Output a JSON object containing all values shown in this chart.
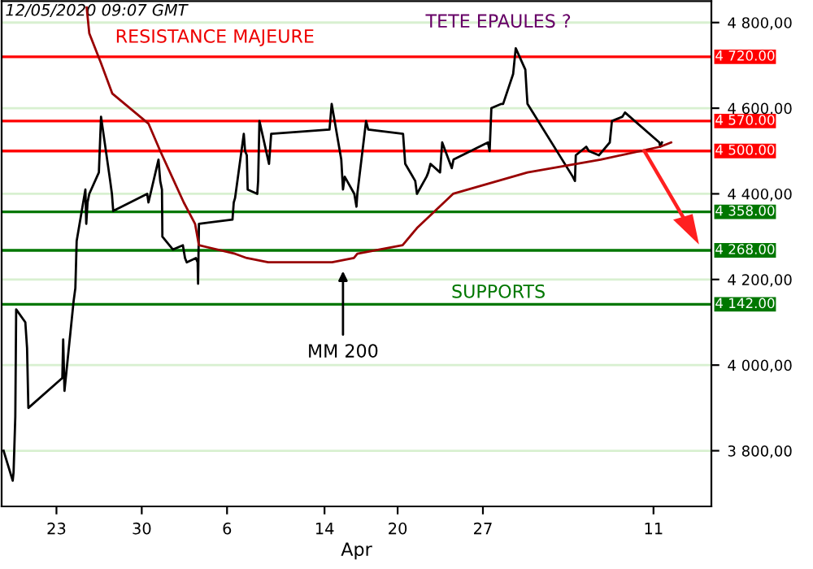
{
  "chart_data": {
    "type": "line",
    "xlabel": "Apr",
    "annotations": [
      "12/05/2020 09:07 GMT",
      "RESISTANCE MAJEURE",
      "TETE EPAULES ?",
      "SUPPORTS",
      {
        "text": "MM 200",
        "x": "2020-04-15T12:24",
        "y": 4230
      }
    ],
    "series": [
      {
        "color": "#000000",
        "x": [
          "2020-03-18T15:48",
          "2020-03-19T09:51",
          "2020-03-19T11:33",
          "2020-03-19T14:57",
          "2020-03-19T16:39",
          "2020-03-20T10:42",
          "2020-03-20T14:06",
          "2020-03-20T16:39",
          "2020-03-23T11:33",
          "2020-03-23T13:15",
          "2020-03-23T15:48",
          "2020-03-24T09:51",
          "2020-03-24T13:15",
          "2020-03-24T15:48",
          "2020-03-25T09:00",
          "2020-03-25T10:42",
          "2020-03-25T13:15",
          "2020-03-25T16:39",
          "2020-03-26T11:33",
          "2020-03-26T15:48",
          "2020-03-27T09:51",
          "2020-03-27T13:15",
          "2020-03-27T15:48",
          "2020-03-30T10:42",
          "2020-03-30T13:15",
          "2020-03-31T09:00",
          "2020-03-31T12:24",
          "2020-03-31T15:48",
          "2020-03-31T16:39",
          "2020-04-01T13:15",
          "2020-04-02T09:00",
          "2020-04-02T13:15",
          "2020-04-02T16:39",
          "2020-04-03T10:42",
          "2020-04-03T14:06",
          "2020-04-03T14:57",
          "2020-04-03T16:39",
          "2020-04-06T10:42",
          "2020-04-06T13:15",
          "2020-04-06T15:48",
          "2020-04-07T09:00",
          "2020-04-07T11:33",
          "2020-04-07T14:57",
          "2020-04-07T16:39",
          "2020-04-08T11:33",
          "2020-04-08T13:15",
          "2020-04-08T15:48",
          "2020-04-09T10:42",
          "2020-04-09T14:57",
          "2020-04-14T09:51",
          "2020-04-14T14:06",
          "2020-04-15T09:00",
          "2020-04-15T12:24",
          "2020-04-15T15:48",
          "2020-04-16T10:42",
          "2020-04-16T14:57",
          "2020-04-16T16:39",
          "2020-04-17T09:51",
          "2020-04-17T14:06",
          "2020-04-20T10:42",
          "2020-04-20T14:57",
          "2020-04-21T10:42",
          "2020-04-21T14:06",
          "2020-04-22T09:00",
          "2020-04-22T12:24",
          "2020-04-22T16:39",
          "2020-04-23T11:33",
          "2020-04-23T15:48",
          "2020-04-24T10:42",
          "2020-04-24T14:06",
          "2020-04-27T09:51",
          "2020-04-27T13:15",
          "2020-04-27T16:39",
          "2020-04-28T12:24",
          "2020-04-28T15:48",
          "2020-04-29T11:33",
          "2020-04-29T16:39",
          "2020-04-30T11:33",
          "2020-04-30T14:06",
          "2020-04-30T15:48",
          "2020-05-04T09:00",
          "2020-05-04T13:15",
          "2020-05-04T14:57",
          "2020-05-05T11:33",
          "2020-05-05T16:39",
          "2020-05-06T12:24",
          "2020-05-07T09:51",
          "2020-05-07T14:06",
          "2020-05-08T10:42",
          "2020-05-08T15:48",
          "2020-05-11T11:33",
          "2020-05-11T13:15",
          "2020-05-11T16:39"
        ],
        "values": [
          3800,
          3730,
          3750,
          3880,
          4130,
          4100,
          4040,
          3900,
          3970,
          4060,
          3940,
          4150,
          4180,
          4290,
          4410,
          4330,
          4380,
          4400,
          4450,
          4580,
          4430,
          4400,
          4360,
          4400,
          4380,
          4480,
          4430,
          4410,
          4300,
          4270,
          4280,
          4250,
          4240,
          4250,
          4240,
          4190,
          4330,
          4340,
          4380,
          4390,
          4540,
          4500,
          4490,
          4410,
          4400,
          4430,
          4570,
          4470,
          4540,
          4550,
          4610,
          4480,
          4410,
          4440,
          4400,
          4370,
          4400,
          4570,
          4550,
          4540,
          4470,
          4430,
          4400,
          4440,
          4450,
          4470,
          4450,
          4520,
          4460,
          4480,
          4520,
          4500,
          4600,
          4610,
          4610,
          4680,
          4740,
          4690,
          4640,
          4610,
          4440,
          4430,
          4490,
          4510,
          4500,
          4490,
          4520,
          4570,
          4580,
          4590,
          4520,
          4510,
          4520
        ]
      },
      {
        "color": "#990000",
        "x": [
          "2020-03-25T11:33",
          "2020-03-25T16:39",
          "2020-03-26T15:48",
          "2020-03-27T14:06",
          "2020-03-30T13:15",
          "2020-03-31T12:24",
          "2020-04-01T11:33",
          "2020-04-02T10:42",
          "2020-04-03T09:00",
          "2020-04-03T16:39",
          "2020-04-06T15:48",
          "2020-04-07T14:57",
          "2020-04-09T09:00",
          "2020-04-14T14:57",
          "2020-04-16T09:51",
          "2020-04-16T16:39",
          "2020-04-20T09:51",
          "2020-04-21T14:06",
          "2020-04-24T13:15",
          "2020-04-30T15:48",
          "2020-05-06T15:48",
          "2020-05-11T13:15",
          "2020-05-12T10:42"
        ],
        "values": [
          4835,
          4775,
          4705,
          4634,
          4564,
          4500,
          4440,
          4380,
          4330,
          4280,
          4260,
          4250,
          4240,
          4240,
          4250,
          4260,
          4280,
          4320,
          4400,
          4450,
          4480,
          4510,
          4520
        ]
      }
    ],
    "ref_lines": [
      {
        "axis": "y",
        "value": 4720,
        "label": "4 720.00",
        "color": "#ff0000"
      },
      {
        "axis": "y",
        "value": 4570,
        "label": "4 570.00",
        "color": "#ff0000"
      },
      {
        "axis": "y",
        "value": 4500,
        "label": "4 500.00",
        "color": "#ff0000"
      },
      {
        "axis": "y",
        "value": 4358,
        "label": "4 358.00",
        "color": "#007700"
      },
      {
        "axis": "y",
        "value": 4268,
        "label": "4 268.00",
        "color": "#007700"
      },
      {
        "axis": "y",
        "value": 4142,
        "label": "4 142.00",
        "color": "#007700"
      }
    ],
    "xlim": [
      "2020-03-18T12:00",
      "2020-05-15T18:00"
    ],
    "xticks": [
      {
        "value": "2020-03-23",
        "label": "23"
      },
      {
        "value": "2020-03-30",
        "label": "30"
      },
      {
        "value": "2020-04-06",
        "label": "6"
      },
      {
        "value": "2020-04-14",
        "label": "14"
      },
      {
        "value": "2020-04-20",
        "label": "20"
      },
      {
        "value": "2020-04-27",
        "label": "27"
      },
      {
        "value": "2020-05-11",
        "label": "11"
      }
    ],
    "ylim": [
      3670,
      4850
    ],
    "yticks": [
      {
        "value": 3800,
        "label": "3 800,00"
      },
      {
        "value": 4000,
        "label": "4 000,00"
      },
      {
        "value": 4200,
        "label": "4 200,00"
      },
      {
        "value": 4400,
        "label": "4 400,00"
      },
      {
        "value": 4600,
        "label": "4 600,00"
      },
      {
        "value": 4800,
        "label": "4 800,00"
      }
    ],
    "grid": "y"
  }
}
